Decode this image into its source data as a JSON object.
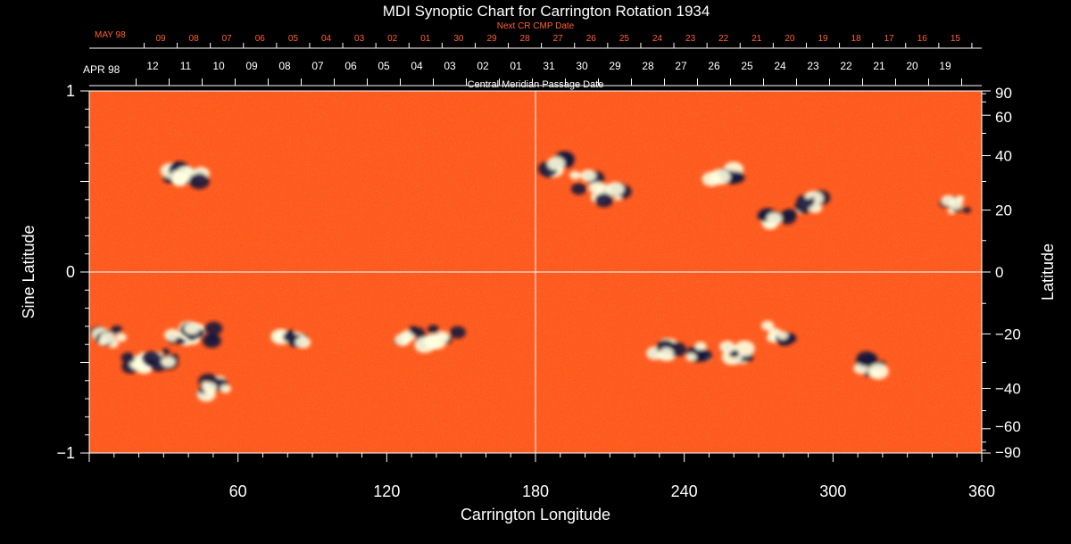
{
  "chart_data": {
    "type": "heatmap",
    "title": "MDI Synoptic Chart for Carrington Rotation 1934",
    "xlabel": "Carrington Longitude",
    "ylabel_left": "Sine Latitude",
    "ylabel_right": "Latitude",
    "xlim": [
      0,
      360
    ],
    "ylim": [
      -1,
      1
    ],
    "x_ticks": [
      60,
      120,
      180,
      240,
      300,
      360
    ],
    "y_ticks_left": [
      "1",
      "0",
      "−1"
    ],
    "y_ticks_left_values": [
      1,
      0,
      -1
    ],
    "y_ticks_right": [
      "90",
      "60",
      "40",
      "20",
      "0",
      "−20",
      "−40",
      "−60",
      "−90"
    ],
    "y_ticks_right_values": [
      90,
      60,
      40,
      20,
      0,
      -20,
      -40,
      -60,
      -90
    ],
    "reference_lines": {
      "longitude": 180,
      "sine_latitude": 0
    },
    "background_color": "#ff5a1e",
    "colors": {
      "positive": "#ffffe0",
      "negative": "#14143c",
      "neutral": "#ff5a1e"
    },
    "top_axis_cmp": {
      "label": "Central Meridian Passage Date",
      "month_label": "APR 98",
      "dates": [
        "12",
        "11",
        "10",
        "09",
        "08",
        "07",
        "06",
        "05",
        "04",
        "03",
        "02",
        "01",
        "31",
        "30",
        "29",
        "28",
        "27",
        "26",
        "25",
        "24",
        "23",
        "22",
        "21",
        "20",
        "19"
      ]
    },
    "top_axis_next_cmp": {
      "label": "Next CR CMP Date",
      "month_label": "MAY 98",
      "dates": [
        "09",
        "08",
        "07",
        "06",
        "05",
        "04",
        "03",
        "02",
        "01",
        "30",
        "29",
        "28",
        "27",
        "26",
        "25",
        "24",
        "23",
        "22",
        "21",
        "20",
        "19",
        "18",
        "17",
        "16",
        "15"
      ]
    },
    "active_regions": [
      {
        "lon": 8,
        "sinlat": -0.36,
        "pol": "mixed"
      },
      {
        "lon": 18,
        "sinlat": -0.5,
        "pol": "positive"
      },
      {
        "lon": 30,
        "sinlat": -0.48,
        "pol": "negative"
      },
      {
        "lon": 38,
        "sinlat": -0.36,
        "pol": "positive"
      },
      {
        "lon": 45,
        "sinlat": -0.35,
        "pol": "negative"
      },
      {
        "lon": 36,
        "sinlat": 0.55,
        "pol": "negative"
      },
      {
        "lon": 40,
        "sinlat": 0.52,
        "pol": "positive"
      },
      {
        "lon": 50,
        "sinlat": -0.64,
        "pol": "mixed"
      },
      {
        "lon": 82,
        "sinlat": -0.38,
        "pol": "mixed"
      },
      {
        "lon": 130,
        "sinlat": -0.36,
        "pol": "mixed"
      },
      {
        "lon": 144,
        "sinlat": -0.36,
        "pol": "mixed"
      },
      {
        "lon": 190,
        "sinlat": 0.58,
        "pol": "negative"
      },
      {
        "lon": 200,
        "sinlat": 0.5,
        "pol": "mixed"
      },
      {
        "lon": 210,
        "sinlat": 0.42,
        "pol": "mixed"
      },
      {
        "lon": 256,
        "sinlat": 0.55,
        "pol": "mixed"
      },
      {
        "lon": 292,
        "sinlat": 0.38,
        "pol": "mixed"
      },
      {
        "lon": 278,
        "sinlat": 0.31,
        "pol": "negative"
      },
      {
        "lon": 350,
        "sinlat": 0.38,
        "pol": "mixed"
      },
      {
        "lon": 232,
        "sinlat": -0.42,
        "pol": "mixed"
      },
      {
        "lon": 245,
        "sinlat": -0.44,
        "pol": "mixed"
      },
      {
        "lon": 262,
        "sinlat": -0.44,
        "pol": "mixed"
      },
      {
        "lon": 278,
        "sinlat": -0.34,
        "pol": "mixed"
      },
      {
        "lon": 315,
        "sinlat": -0.52,
        "pol": "negative"
      }
    ]
  }
}
